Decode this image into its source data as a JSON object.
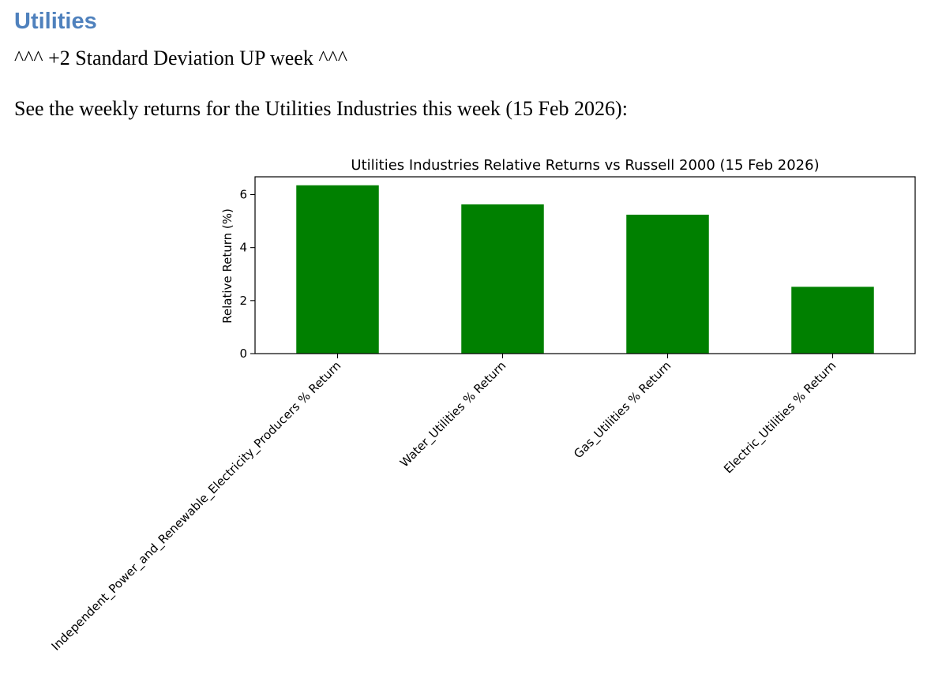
{
  "document": {
    "heading": "Utilities",
    "subtitle": "^^^ +2 Standard Deviation UP week ^^^",
    "intro": "See the weekly returns for the Utilities Industries this week (15 Feb 2026):"
  },
  "colors": {
    "heading": "#4f81bd",
    "bar": "#008000"
  },
  "chart_data": {
    "type": "bar",
    "title": "Utilities Industries Relative Returns vs Russell 2000 (15 Feb 2026)",
    "xlabel": "",
    "ylabel": "Relative Return (%)",
    "categories": [
      "Independent_Power_and_Renewable_Electricity_Producers % Return",
      "Water_Utilities % Return",
      "Gas_Utilities % Return",
      "Electric_Utilities % Return"
    ],
    "values": [
      6.35,
      5.63,
      5.24,
      2.52
    ],
    "ylim": [
      0,
      6.67
    ],
    "yticks": [
      0,
      2,
      4,
      6
    ],
    "grid": false,
    "legend": "none"
  }
}
